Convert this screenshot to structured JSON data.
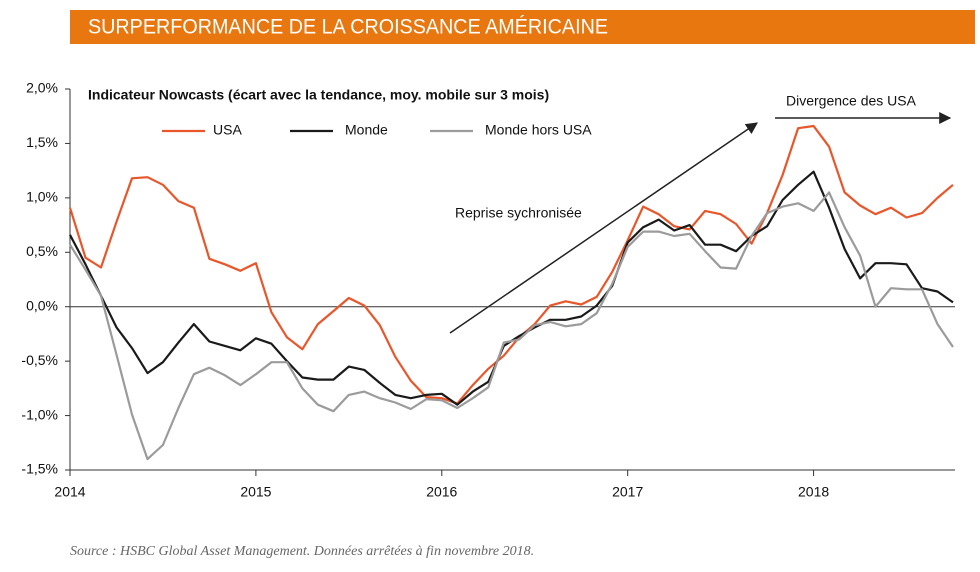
{
  "chart_data": {
    "type": "line",
    "title": "SURPERFORMANCE DE LA CROISSANCE AMÉRICAINE",
    "subtitle": "Indicateur Nowcasts (écart avec la tendance, moy. mobile sur 3 mois)",
    "annotations": [
      "Divergence des USA",
      "Reprise sychronisée"
    ],
    "source": "Source : HSBC Global Asset Management. Données arrêtées à fin novembre 2018.",
    "x": [
      0,
      1,
      2,
      3,
      4,
      5,
      6,
      7,
      8,
      9,
      10,
      11,
      12,
      13,
      14,
      15,
      16,
      17,
      18,
      19,
      20,
      21,
      22,
      23,
      24,
      25,
      26,
      27,
      28,
      29,
      30,
      31,
      32,
      33,
      34,
      35,
      36,
      37,
      38,
      39,
      40,
      41,
      42,
      43,
      44,
      45,
      46,
      47,
      48,
      49,
      50,
      51,
      52,
      53,
      54,
      55,
      56,
      57
    ],
    "xlim": [
      0,
      57
    ],
    "xticks": [
      {
        "value": 0,
        "label": "2014"
      },
      {
        "value": 12,
        "label": "2015"
      },
      {
        "value": 24,
        "label": "2016"
      },
      {
        "value": 36,
        "label": "2017"
      },
      {
        "value": 48,
        "label": "2018"
      }
    ],
    "ylim": [
      -1.5,
      2
    ],
    "yticks": [
      {
        "value": -1.5,
        "label": "-1,5%"
      },
      {
        "value": -1,
        "label": "-1,0%"
      },
      {
        "value": -0.5,
        "label": "-0,5%"
      },
      {
        "value": 0,
        "label": "0,0%"
      },
      {
        "value": 0.5,
        "label": "0,5%"
      },
      {
        "value": 1,
        "label": "1,0%"
      },
      {
        "value": 1.5,
        "label": "1,5%"
      },
      {
        "value": 2,
        "label": "2,0%"
      }
    ],
    "series": [
      {
        "name": "USA",
        "color": "#e8562a",
        "values": [
          0.91,
          0.45,
          0.36,
          0.78,
          1.18,
          1.19,
          1.12,
          0.97,
          0.91,
          0.44,
          0.39,
          0.33,
          0.4,
          -0.05,
          -0.28,
          -0.39,
          -0.16,
          -0.04,
          0.08,
          0.01,
          -0.17,
          -0.46,
          -0.68,
          -0.83,
          -0.84,
          -0.89,
          -0.72,
          -0.57,
          -0.45,
          -0.28,
          -0.16,
          0.01,
          0.05,
          0.02,
          0.09,
          0.32,
          0.61,
          0.92,
          0.85,
          0.74,
          0.71,
          0.88,
          0.85,
          0.76,
          0.58,
          0.86,
          1.21,
          1.64,
          1.66,
          1.47,
          1.05,
          0.93,
          0.85,
          0.91,
          0.82,
          0.86,
          1.0,
          1.12
        ]
      },
      {
        "name": "Monde",
        "color": "#1a1a1a",
        "values": [
          0.66,
          0.39,
          0.1,
          -0.19,
          -0.38,
          -0.61,
          -0.51,
          -0.33,
          -0.16,
          -0.32,
          -0.36,
          -0.4,
          -0.29,
          -0.34,
          -0.5,
          -0.65,
          -0.67,
          -0.67,
          -0.55,
          -0.58,
          -0.7,
          -0.81,
          -0.84,
          -0.81,
          -0.8,
          -0.9,
          -0.78,
          -0.69,
          -0.36,
          -0.27,
          -0.19,
          -0.12,
          -0.12,
          -0.09,
          0.01,
          0.19,
          0.59,
          0.73,
          0.8,
          0.7,
          0.75,
          0.57,
          0.57,
          0.51,
          0.65,
          0.74,
          0.98,
          1.12,
          1.24,
          0.91,
          0.53,
          0.26,
          0.4,
          0.4,
          0.39,
          0.17,
          0.14,
          0.04
        ]
      },
      {
        "name": "Monde hors USA",
        "color": "#9b9b9b",
        "values": [
          0.57,
          0.34,
          0.1,
          -0.44,
          -0.99,
          -1.4,
          -1.27,
          -0.93,
          -0.62,
          -0.56,
          -0.63,
          -0.72,
          -0.62,
          -0.51,
          -0.51,
          -0.75,
          -0.9,
          -0.96,
          -0.81,
          -0.78,
          -0.84,
          -0.88,
          -0.94,
          -0.85,
          -0.86,
          -0.93,
          -0.84,
          -0.74,
          -0.33,
          -0.3,
          -0.17,
          -0.14,
          -0.18,
          -0.16,
          -0.06,
          0.21,
          0.55,
          0.69,
          0.69,
          0.65,
          0.67,
          0.51,
          0.36,
          0.35,
          0.65,
          0.86,
          0.92,
          0.95,
          0.88,
          1.05,
          0.73,
          0.47,
          0.0,
          0.17,
          0.16,
          0.16,
          -0.16,
          -0.37
        ]
      }
    ]
  }
}
